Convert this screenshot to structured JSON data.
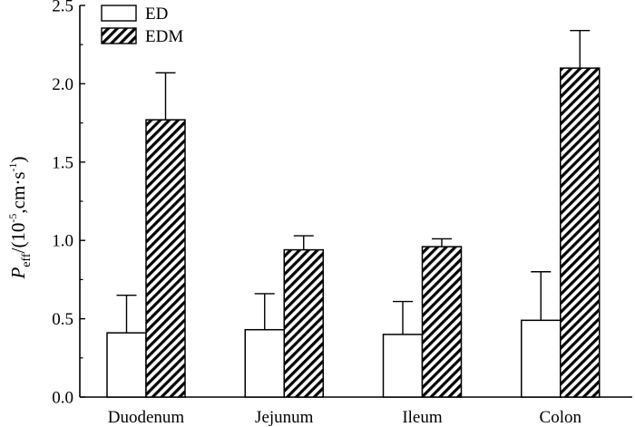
{
  "chart_data": {
    "type": "bar",
    "categories": [
      "Duodenum",
      "Jejunum",
      "Ileum",
      "Colon"
    ],
    "series": [
      {
        "name": "ED",
        "pattern": "solid-white",
        "values": [
          0.41,
          0.43,
          0.4,
          0.49
        ],
        "errors": [
          0.24,
          0.23,
          0.21,
          0.31
        ]
      },
      {
        "name": "EDM",
        "pattern": "diagonal-hatch",
        "values": [
          1.77,
          0.94,
          0.96,
          2.1
        ],
        "errors": [
          0.3,
          0.09,
          0.05,
          0.24
        ]
      }
    ],
    "ylim": [
      0,
      2.5
    ],
    "yticks": [
      0.0,
      0.5,
      1.0,
      1.5,
      2.0,
      2.5
    ],
    "ytick_labels": [
      "0.0",
      "0.5",
      "1.0",
      "1.5",
      "2.0",
      "2.5"
    ],
    "ylabel": {
      "main": "P",
      "main_sub": "eff",
      "unit_open": "/(10",
      "unit_exp": "-5",
      "unit_mid": ",cm·s",
      "unit_exp2": "-1",
      "unit_close": ")"
    },
    "xlabel": "",
    "title": "",
    "legend_position": "top-left",
    "grid": false
  }
}
